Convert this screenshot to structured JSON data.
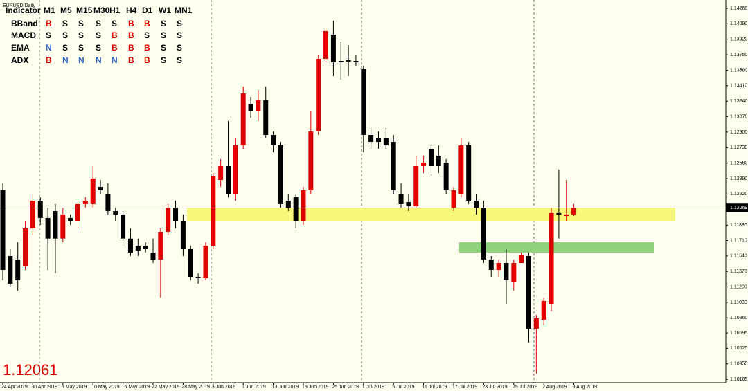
{
  "chart_data": {
    "type": "candlestick",
    "title": "EURUSD,Daily",
    "categories": [
      "24 Apr 2019",
      null,
      null,
      null,
      "30 Apr 2019",
      null,
      null,
      null,
      "6 May 2019",
      null,
      null,
      null,
      "10 May 2019",
      null,
      null,
      null,
      "16 May 2019",
      null,
      null,
      null,
      "22 May 2019",
      null,
      null,
      null,
      "28 May 2019",
      null,
      null,
      null,
      "3 Jun 2019",
      null,
      null,
      null,
      "7 Jun 2019",
      null,
      null,
      null,
      "13 Jun 2019",
      null,
      null,
      null,
      "19 Jun 2019",
      null,
      null,
      null,
      "25 Jun 2019",
      null,
      null,
      null,
      "1 Jul 2019",
      null,
      null,
      null,
      "5 Jul 2019",
      null,
      null,
      null,
      "11 Jul 2019",
      null,
      null,
      null,
      "17 Jul 2019",
      null,
      null,
      null,
      "23 Jul 2019",
      null,
      null,
      null,
      "29 Jul 2019",
      null,
      null,
      null,
      "2 Aug 2019",
      null,
      null,
      null,
      "8 Aug 2019"
    ],
    "open": [
      1.12261,
      1.11539,
      1.11501,
      1.11425,
      1.11843,
      1.12147,
      1.11957,
      1.12033,
      1.11731,
      1.11957,
      1.11919,
      1.12109,
      1.12109,
      1.12299,
      1.12223,
      1.12033,
      1.11995,
      1.11731,
      1.11653,
      1.11653,
      1.11577,
      1.11501,
      1.11805,
      1.12071,
      1.11919,
      1.11615,
      1.11311,
      1.11296,
      1.11653,
      1.12375,
      1.12527,
      1.12223,
      1.12755,
      1.13211,
      1.13135,
      1.13249,
      1.12869,
      1.12755,
      1.12147,
      1.12185,
      1.11919,
      1.12261,
      1.12907,
      1.13705,
      1.13971,
      1.13682,
      1.1369,
      1.13682,
      1.13591,
      1.12869,
      1.12831,
      1.12831,
      1.12793,
      1.12223,
      1.12132,
      1.12086,
      1.12527,
      1.12717,
      1.12641,
      1.12565,
      1.12071,
      1.12223,
      1.12755,
      1.12147,
      1.12071,
      1.11501,
      1.11387,
      1.11463,
      1.1125,
      1.11463,
      1.11539,
      1.10741,
      1.10839,
      1.11007,
      1.12011,
      1.11979,
      1.11995
    ],
    "high": [
      1.12337,
      1.11615,
      1.11691,
      1.11919,
      1.12223,
      1.12185,
      1.12071,
      1.12109,
      1.12071,
      1.11995,
      1.12147,
      1.12185,
      1.12527,
      1.12375,
      1.12337,
      1.12071,
      1.12033,
      1.11843,
      1.11731,
      1.11691,
      1.11731,
      1.11843,
      1.12109,
      1.12147,
      1.11995,
      1.11653,
      1.11349,
      1.11691,
      1.12451,
      1.12603,
      1.13021,
      1.12831,
      1.13401,
      1.13287,
      1.13363,
      1.13401,
      1.12907,
      1.12793,
      1.12223,
      1.12223,
      1.12299,
      1.13135,
      1.13743,
      1.14047,
      1.14123,
      1.13895,
      1.13857,
      1.13743,
      1.13629,
      1.12945,
      1.12907,
      1.12945,
      1.12869,
      1.12337,
      1.12223,
      1.12641,
      1.12641,
      1.12755,
      1.12755,
      1.12603,
      1.12299,
      1.12831,
      1.12793,
      1.12223,
      1.12147,
      1.11539,
      1.11501,
      1.11615,
      1.11501,
      1.11577,
      1.11577,
      1.10893,
      1.11083,
      1.12071,
      1.12489,
      1.12375,
      1.12109
    ],
    "low": [
      1.11273,
      1.11197,
      1.11159,
      1.11387,
      1.11767,
      1.11881,
      1.11387,
      1.11349,
      1.11691,
      1.11881,
      1.11843,
      1.12071,
      1.12071,
      1.12223,
      1.11995,
      1.11919,
      1.11653,
      1.11539,
      1.11539,
      1.11577,
      1.11463,
      1.11083,
      1.11767,
      1.11843,
      1.11539,
      1.11273,
      1.11235,
      1.11273,
      1.11615,
      1.12299,
      1.12185,
      1.12147,
      1.12717,
      1.13059,
      1.13021,
      1.12831,
      1.12679,
      1.12071,
      1.12033,
      1.11843,
      1.11881,
      1.12223,
      1.12869,
      1.13667,
      1.13515,
      1.13477,
      1.13515,
      1.13629,
      1.12679,
      1.12717,
      1.12717,
      1.12717,
      1.12223,
      1.12071,
      1.12033,
      1.12071,
      1.12451,
      1.12451,
      1.12451,
      1.12223,
      1.12033,
      1.12185,
      1.12109,
      1.11995,
      1.11463,
      1.11311,
      1.11311,
      1.11007,
      1.11159,
      1.11463,
      1.10589,
      1.10247,
      1.10779,
      1.10931,
      1.11731,
      1.11919,
      1.11979
    ],
    "close": [
      1.11387,
      1.11235,
      1.11273,
      1.11843,
      1.12147,
      1.11957,
      1.11731,
      1.11731,
      1.11995,
      1.11919,
      1.12109,
      1.12147,
      1.1239,
      1.12261,
      1.12033,
      1.11995,
      1.11731,
      1.11577,
      1.116,
      1.11615,
      1.11501,
      1.11805,
      1.12071,
      1.11919,
      1.11615,
      1.11311,
      1.11296,
      1.11653,
      1.12413,
      1.12527,
      1.12223,
      1.12755,
      1.13325,
      1.13135,
      1.13249,
      1.12869,
      1.12755,
      1.12109,
      1.12071,
      1.11919,
      1.12261,
      1.12907,
      1.13705,
      1.14009,
      1.13667,
      1.13667,
      1.13675,
      1.13667,
      1.12869,
      1.12793,
      1.12793,
      1.12755,
      1.12261,
      1.12109,
      1.12086,
      1.12527,
      1.12565,
      1.12527,
      1.12527,
      1.12261,
      1.12261,
      1.12755,
      1.12147,
      1.12071,
      1.11501,
      1.11387,
      1.11463,
      1.11273,
      1.11463,
      1.11554,
      1.10741,
      1.10855,
      1.11045,
      1.12011,
      1.11995,
      1.11995,
      1.12071
    ],
    "up_color": "#e00000",
    "down_color": "#000000",
    "ylim": [
      1.10148,
      1.14351
    ],
    "yticks": [
      {
        "value": 1.1426,
        "label": "1.14260"
      },
      {
        "value": 1.1409,
        "label": "1.14090"
      },
      {
        "value": 1.1392,
        "label": "1.13920"
      },
      {
        "value": 1.1375,
        "label": "1.13750"
      },
      {
        "value": 1.1358,
        "label": "1.13580"
      },
      {
        "value": 1.1341,
        "label": "1.13410"
      },
      {
        "value": 1.1324,
        "label": "1.13240"
      },
      {
        "value": 1.1307,
        "label": "1.13070"
      },
      {
        "value": 1.129,
        "label": "1.12900"
      },
      {
        "value": 1.1273,
        "label": "1.12730"
      },
      {
        "value": 1.1256,
        "label": "1.12560"
      },
      {
        "value": 1.1239,
        "label": "1.12390"
      },
      {
        "value": 1.1222,
        "label": "1.12220"
      },
      {
        "value": 1.1188,
        "label": "1.11880"
      },
      {
        "value": 1.1171,
        "label": "1.11710"
      },
      {
        "value": 1.1154,
        "label": "1.11540"
      },
      {
        "value": 1.1137,
        "label": "1.11370"
      },
      {
        "value": 1.112,
        "label": "1.11200"
      },
      {
        "value": 1.1103,
        "label": "1.11030"
      },
      {
        "value": 1.1086,
        "label": "1.10860"
      },
      {
        "value": 1.10695,
        "label": "1.10695"
      },
      {
        "value": 1.10525,
        "label": "1.10525"
      },
      {
        "value": 1.10355,
        "label": "1.10355"
      },
      {
        "value": 1.10185,
        "label": "1.10185"
      }
    ],
    "current_price": 1.12069,
    "bid_price": 1.12061,
    "zones": [
      {
        "low": 1.11919,
        "high": 1.12071,
        "color": "#f7f77a"
      },
      {
        "low": 1.11577,
        "high": 1.11691,
        "color": "#8fd47c"
      }
    ]
  },
  "indicator_table": {
    "header": [
      "Indicator",
      "M1",
      "M5",
      "M15",
      "M30",
      "H1",
      "H4",
      "D1",
      "W1",
      "MN1"
    ],
    "signal_colors": {
      "B": "#e00000",
      "S": "#000000",
      "N": "#3366cc"
    },
    "rows": [
      {
        "name": "BBand",
        "signals": [
          "B",
          "S",
          "S",
          "S",
          "S",
          "B",
          "B",
          "S",
          "S"
        ]
      },
      {
        "name": "MACD",
        "signals": [
          "S",
          "S",
          "S",
          "S",
          "B",
          "B",
          "S",
          "S",
          "S"
        ]
      },
      {
        "name": "EMA",
        "signals": [
          "N",
          "S",
          "S",
          "S",
          "B",
          "B",
          "B",
          "S",
          "S"
        ]
      },
      {
        "name": "ADX",
        "signals": [
          "B",
          "N",
          "N",
          "N",
          "N",
          "B",
          "B",
          "S",
          "S"
        ]
      }
    ]
  }
}
